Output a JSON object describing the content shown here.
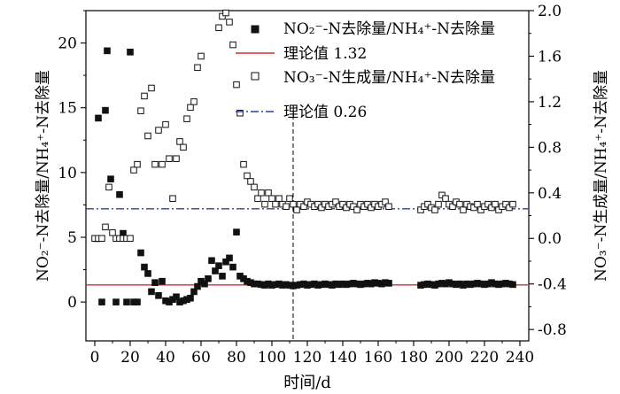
{
  "chart_data": {
    "type": "scatter",
    "xlabel": "时间/d",
    "ylabel_left": "NO₂⁻-N去除量/NH₄⁺-N去除量",
    "ylabel_right": "NO₃⁻-N生成量/NH₄⁺-N去除量",
    "xlim": [
      -5,
      245
    ],
    "ylim_left": [
      -3,
      22.5
    ],
    "ylim_right": [
      -0.9,
      2.0
    ],
    "x_ticks": [
      0,
      20,
      40,
      60,
      80,
      100,
      120,
      140,
      160,
      180,
      200,
      220,
      240
    ],
    "y_left_ticks": [
      0,
      5,
      10,
      15,
      20
    ],
    "y_right_ticks": [
      "-0.8",
      "-0.4",
      "0.0",
      "0.4",
      "0.8",
      "1.2",
      "1.6",
      "2.0"
    ],
    "y_right_tick_values": [
      -0.8,
      -0.4,
      0.0,
      0.4,
      0.8,
      1.2,
      1.6,
      2.0
    ],
    "legend": [
      {
        "label": "NO₂⁻-N去除量/NH₄⁺-N去除量",
        "marker": "filled-square"
      },
      {
        "label": "理论值 1.32",
        "marker": "red-line"
      },
      {
        "label": "NO₃⁻-N生成量/NH₄⁺-N去除量",
        "marker": "open-square"
      },
      {
        "label": "理论值 0.26",
        "marker": "blue-dash-dot-line"
      }
    ],
    "reference_lines": [
      {
        "label": "理论值 1.32",
        "axis": "left",
        "value": 1.32,
        "color": "#d62d2d"
      },
      {
        "label": "理论值 0.26",
        "axis": "right",
        "value": 0.26,
        "color": "#2f3f9f"
      }
    ],
    "vertical_line_x": 112,
    "series": [
      {
        "name": "NO₂⁻-N去除量/NH₄⁺-N去除量",
        "axis": "left",
        "marker": "filled-square",
        "x": [
          1,
          2,
          4,
          6,
          7,
          9,
          12,
          14,
          16,
          18,
          20,
          22,
          24,
          26,
          28,
          30,
          32,
          34,
          36,
          38,
          40,
          42,
          44,
          46,
          48,
          50,
          52,
          54,
          56,
          58,
          60,
          62,
          64,
          66,
          68,
          70,
          72,
          74,
          76,
          78,
          80,
          82,
          84,
          86,
          88,
          90,
          92,
          94,
          96,
          98,
          100,
          102,
          104,
          106,
          108,
          110,
          112,
          114,
          116,
          118,
          120,
          122,
          124,
          126,
          128,
          130,
          132,
          134,
          136,
          138,
          140,
          142,
          144,
          146,
          148,
          150,
          152,
          154,
          156,
          158,
          160,
          162,
          164,
          166,
          184,
          186,
          188,
          190,
          192,
          194,
          196,
          198,
          200,
          202,
          204,
          206,
          208,
          210,
          212,
          214,
          216,
          218,
          220,
          222,
          224,
          226,
          228,
          230,
          232,
          234,
          236
        ],
        "y": [
          4.9,
          14.2,
          0.0,
          14.8,
          19.4,
          9.5,
          0.0,
          8.3,
          5.3,
          0.0,
          19.3,
          0.0,
          0.0,
          3.8,
          2.7,
          2.2,
          0.8,
          1.5,
          0.5,
          1.6,
          0.1,
          0.0,
          0.2,
          0.4,
          0.0,
          0.1,
          0.2,
          0.3,
          0.8,
          1.2,
          1.6,
          1.4,
          1.8,
          3.2,
          2.4,
          2.8,
          2.0,
          3.1,
          3.4,
          2.7,
          5.4,
          2.0,
          1.8,
          1.6,
          1.5,
          1.4,
          1.4,
          1.35,
          1.3,
          1.4,
          1.3,
          1.35,
          1.4,
          1.3,
          1.35,
          1.3,
          1.25,
          1.3,
          1.35,
          1.4,
          1.3,
          1.35,
          1.4,
          1.3,
          1.35,
          1.4,
          1.35,
          1.3,
          1.4,
          1.35,
          1.4,
          1.35,
          1.4,
          1.45,
          1.4,
          1.35,
          1.4,
          1.45,
          1.4,
          1.5,
          1.45,
          1.4,
          1.5,
          1.45,
          1.3,
          1.35,
          1.4,
          1.35,
          1.3,
          1.4,
          1.45,
          1.4,
          1.5,
          1.4,
          1.35,
          1.4,
          1.3,
          1.4,
          1.35,
          1.4,
          1.45,
          1.4,
          1.35,
          1.4,
          1.5,
          1.4,
          1.35,
          1.4,
          1.45,
          1.4,
          1.35
        ]
      },
      {
        "name": "NO₃⁻-N生成量/NH₄⁺-N去除量",
        "axis": "right",
        "marker": "open-square",
        "x": [
          0,
          2,
          4,
          6,
          8,
          10,
          12,
          14,
          16,
          18,
          20,
          22,
          24,
          26,
          28,
          30,
          32,
          34,
          36,
          38,
          40,
          42,
          44,
          46,
          48,
          50,
          52,
          54,
          56,
          58,
          60,
          70,
          72,
          74,
          76,
          78,
          80,
          82,
          84,
          86,
          88,
          90,
          92,
          94,
          96,
          98,
          100,
          102,
          104,
          106,
          108,
          110,
          112,
          114,
          116,
          118,
          120,
          122,
          124,
          126,
          128,
          130,
          132,
          134,
          136,
          138,
          140,
          142,
          144,
          146,
          148,
          150,
          152,
          154,
          156,
          158,
          160,
          162,
          164,
          166,
          184,
          186,
          188,
          190,
          192,
          194,
          196,
          198,
          200,
          202,
          204,
          206,
          208,
          210,
          212,
          214,
          216,
          218,
          220,
          222,
          224,
          226,
          228,
          230,
          232,
          234,
          236
        ],
        "y": [
          0.0,
          0.0,
          0.0,
          0.1,
          0.45,
          0.05,
          0.0,
          0.0,
          0.0,
          0.0,
          0.0,
          0.6,
          0.65,
          1.12,
          1.25,
          0.9,
          1.32,
          0.65,
          0.95,
          0.65,
          1.0,
          0.7,
          0.35,
          0.7,
          0.85,
          0.8,
          1.05,
          1.15,
          1.2,
          1.5,
          1.6,
          1.85,
          1.95,
          1.98,
          1.9,
          1.7,
          1.35,
          1.1,
          0.65,
          0.55,
          0.5,
          0.45,
          0.35,
          0.4,
          0.3,
          0.4,
          0.35,
          0.3,
          0.35,
          0.3,
          0.28,
          0.35,
          0.3,
          0.25,
          0.3,
          0.28,
          0.32,
          0.3,
          0.28,
          0.3,
          0.27,
          0.3,
          0.28,
          0.3,
          0.32,
          0.28,
          0.3,
          0.27,
          0.3,
          0.28,
          0.25,
          0.3,
          0.28,
          0.3,
          0.27,
          0.3,
          0.28,
          0.3,
          0.32,
          0.28,
          0.25,
          0.28,
          0.3,
          0.27,
          0.25,
          0.3,
          0.38,
          0.35,
          0.3,
          0.28,
          0.32,
          0.3,
          0.25,
          0.3,
          0.28,
          0.27,
          0.3,
          0.25,
          0.28,
          0.3,
          0.27,
          0.3,
          0.25,
          0.28,
          0.3,
          0.27,
          0.3
        ]
      }
    ]
  }
}
